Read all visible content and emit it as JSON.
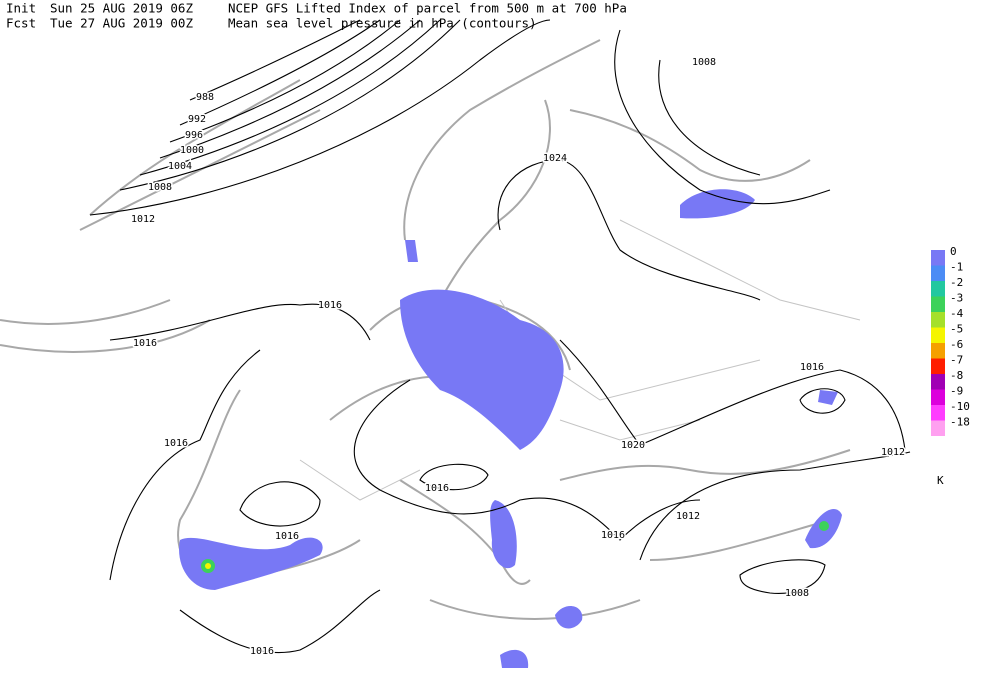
{
  "header": {
    "init_label": "Init",
    "init_time": "Sun 25 AUG 2019 06Z",
    "fcst_label": "Fcst",
    "fcst_time": "Tue 27 AUG 2019 00Z",
    "title": "NCEP GFS Lifted Index of parcel from 500 m at 700 hPa",
    "subtitle": "Mean sea level pressure in hPa (contours)"
  },
  "contour_labels": [
    "988",
    "992",
    "996",
    "1000",
    "1004",
    "1008",
    "1012",
    "1016",
    "1016",
    "1024",
    "1008",
    "1016",
    "1012",
    "1020",
    "1016",
    "1016",
    "1016",
    "1012",
    "1016",
    "1008",
    "1016"
  ],
  "legend": {
    "unit": "K",
    "items": [
      {
        "label": "0",
        "color": "#7878f5"
      },
      {
        "label": "-1",
        "color": "#4b8cf5"
      },
      {
        "label": "-2",
        "color": "#22c8a0"
      },
      {
        "label": "-3",
        "color": "#3cd25a"
      },
      {
        "label": "-4",
        "color": "#a5e02a"
      },
      {
        "label": "-5",
        "color": "#f5f500"
      },
      {
        "label": "-6",
        "color": "#f5a000"
      },
      {
        "label": "-7",
        "color": "#ff1e00"
      },
      {
        "label": "-8",
        "color": "#a000b4"
      },
      {
        "label": "-9",
        "color": "#dc00dc"
      },
      {
        "label": "-10",
        "color": "#ff3cff"
      },
      {
        "label": "-18",
        "color": "#ffa0f0"
      }
    ]
  }
}
